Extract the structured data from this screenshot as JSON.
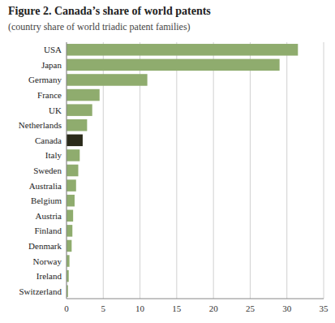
{
  "chart_data": {
    "type": "bar",
    "orientation": "horizontal",
    "title": "Figure 2. Canada’s share of world patents",
    "subtitle": "(country share of world triadic patent families)",
    "categories": [
      "USA",
      "Japan",
      "Germany",
      "France",
      "UK",
      "Netherlands",
      "Canada",
      "Italy",
      "Sweden",
      "Australia",
      "Belgium",
      "Austria",
      "Finland",
      "Denmark",
      "Norway",
      "Ireland",
      "Switzerland"
    ],
    "values": [
      31.5,
      29.0,
      11.0,
      4.5,
      3.5,
      2.8,
      2.2,
      1.8,
      1.6,
      1.3,
      1.1,
      0.9,
      0.8,
      0.7,
      0.4,
      0.3,
      0.2
    ],
    "colors": [
      "#8fac6e",
      "#8fac6e",
      "#8fac6e",
      "#8fac6e",
      "#8fac6e",
      "#8fac6e",
      "#2a2a1a",
      "#8fac6e",
      "#8fac6e",
      "#8fac6e",
      "#8fac6e",
      "#8fac6e",
      "#8fac6e",
      "#8fac6e",
      "#8fac6e",
      "#8fac6e",
      "#8fac6e"
    ],
    "xlim": [
      0,
      35
    ],
    "xticks": [
      0,
      5,
      10,
      15,
      20,
      25,
      30,
      35
    ],
    "grid": true
  }
}
